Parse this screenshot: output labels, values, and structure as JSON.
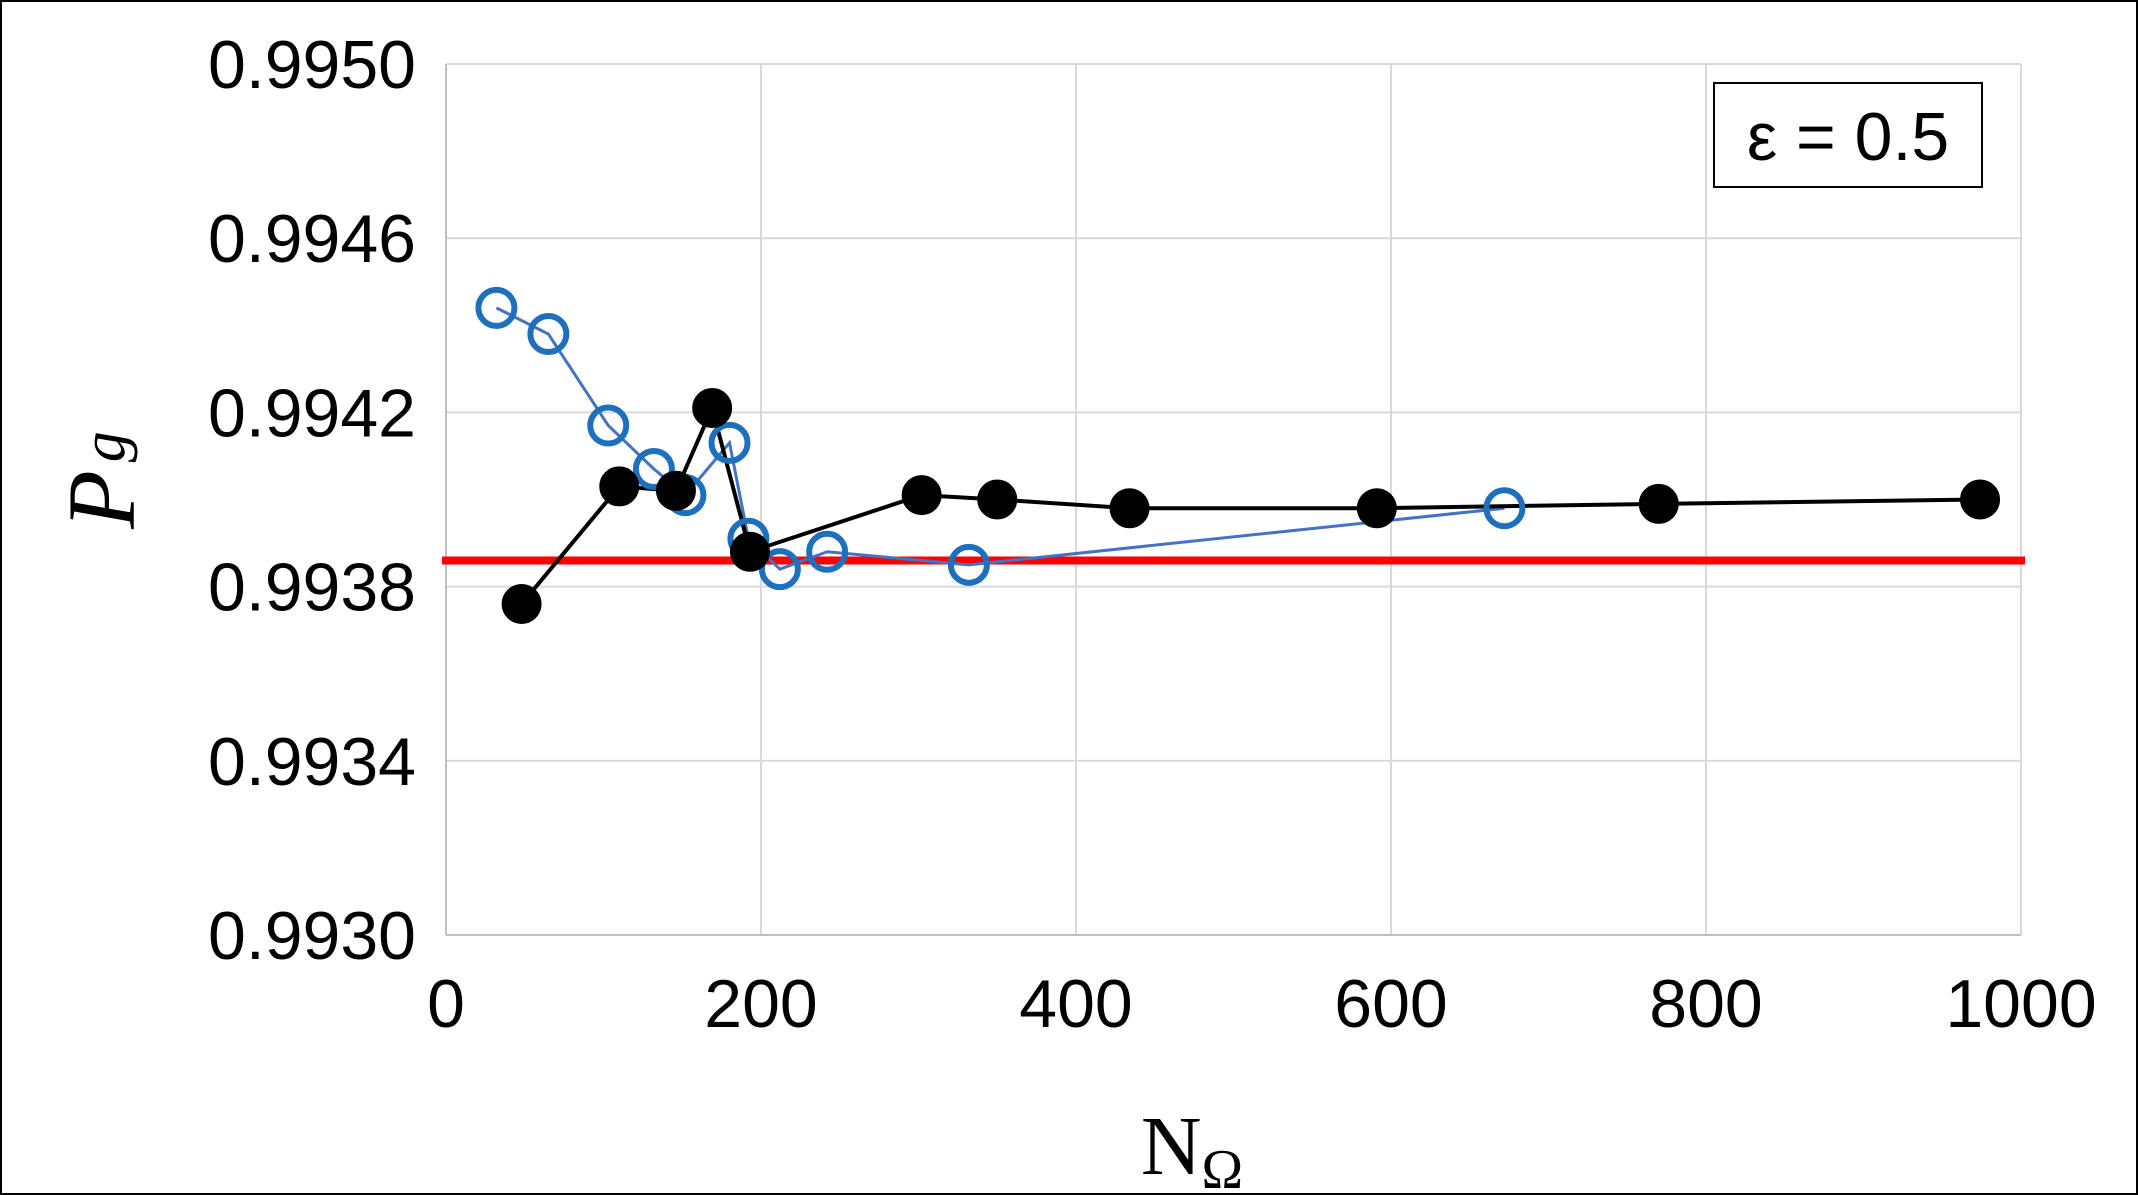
{
  "chart_data": {
    "type": "line",
    "title": "",
    "xlabel_main": "N",
    "xlabel_sub": "Ω",
    "ylabel_main": "P",
    "ylabel_sub": "g",
    "xlim": [
      0,
      1000
    ],
    "ylim": [
      0.993,
      0.995
    ],
    "x_ticks": [
      0,
      200,
      400,
      600,
      800,
      1000
    ],
    "x_tick_labels": [
      "0",
      "200",
      "400",
      "600",
      "800",
      "1000"
    ],
    "y_ticks": [
      0.993,
      0.9934,
      0.9938,
      0.9942,
      0.9946,
      0.995
    ],
    "y_tick_labels": [
      "0.9930",
      "0.9934",
      "0.9938",
      "0.9942",
      "0.9946",
      "0.9950"
    ],
    "grid": true,
    "annotation": "ε = 0.5",
    "reference_line": {
      "y": 0.99386,
      "color": "#ff0000"
    },
    "series": [
      {
        "marker": "open-circle",
        "color": "#1f6fbf",
        "line_color": "#4472c4",
        "points": [
          [
            32,
            0.99444
          ],
          [
            65,
            0.99438
          ],
          [
            103,
            0.99417
          ],
          [
            132,
            0.99407
          ],
          [
            152,
            0.99401
          ],
          [
            180,
            0.99413
          ],
          [
            192,
            0.99391
          ],
          [
            212,
            0.99384
          ],
          [
            242,
            0.99388
          ],
          [
            332,
            0.99385
          ],
          [
            672,
            0.99398
          ]
        ]
      },
      {
        "marker": "filled-circle",
        "color": "#000000",
        "line_color": "#000000",
        "points": [
          [
            48,
            0.99376
          ],
          [
            110,
            0.99403
          ],
          [
            146,
            0.99402
          ],
          [
            169,
            0.99421
          ],
          [
            193,
            0.99388
          ],
          [
            302,
            0.99401
          ],
          [
            350,
            0.994
          ],
          [
            434,
            0.99398
          ],
          [
            591,
            0.99398
          ],
          [
            770,
            0.99399
          ],
          [
            974,
            0.994
          ]
        ]
      }
    ]
  }
}
